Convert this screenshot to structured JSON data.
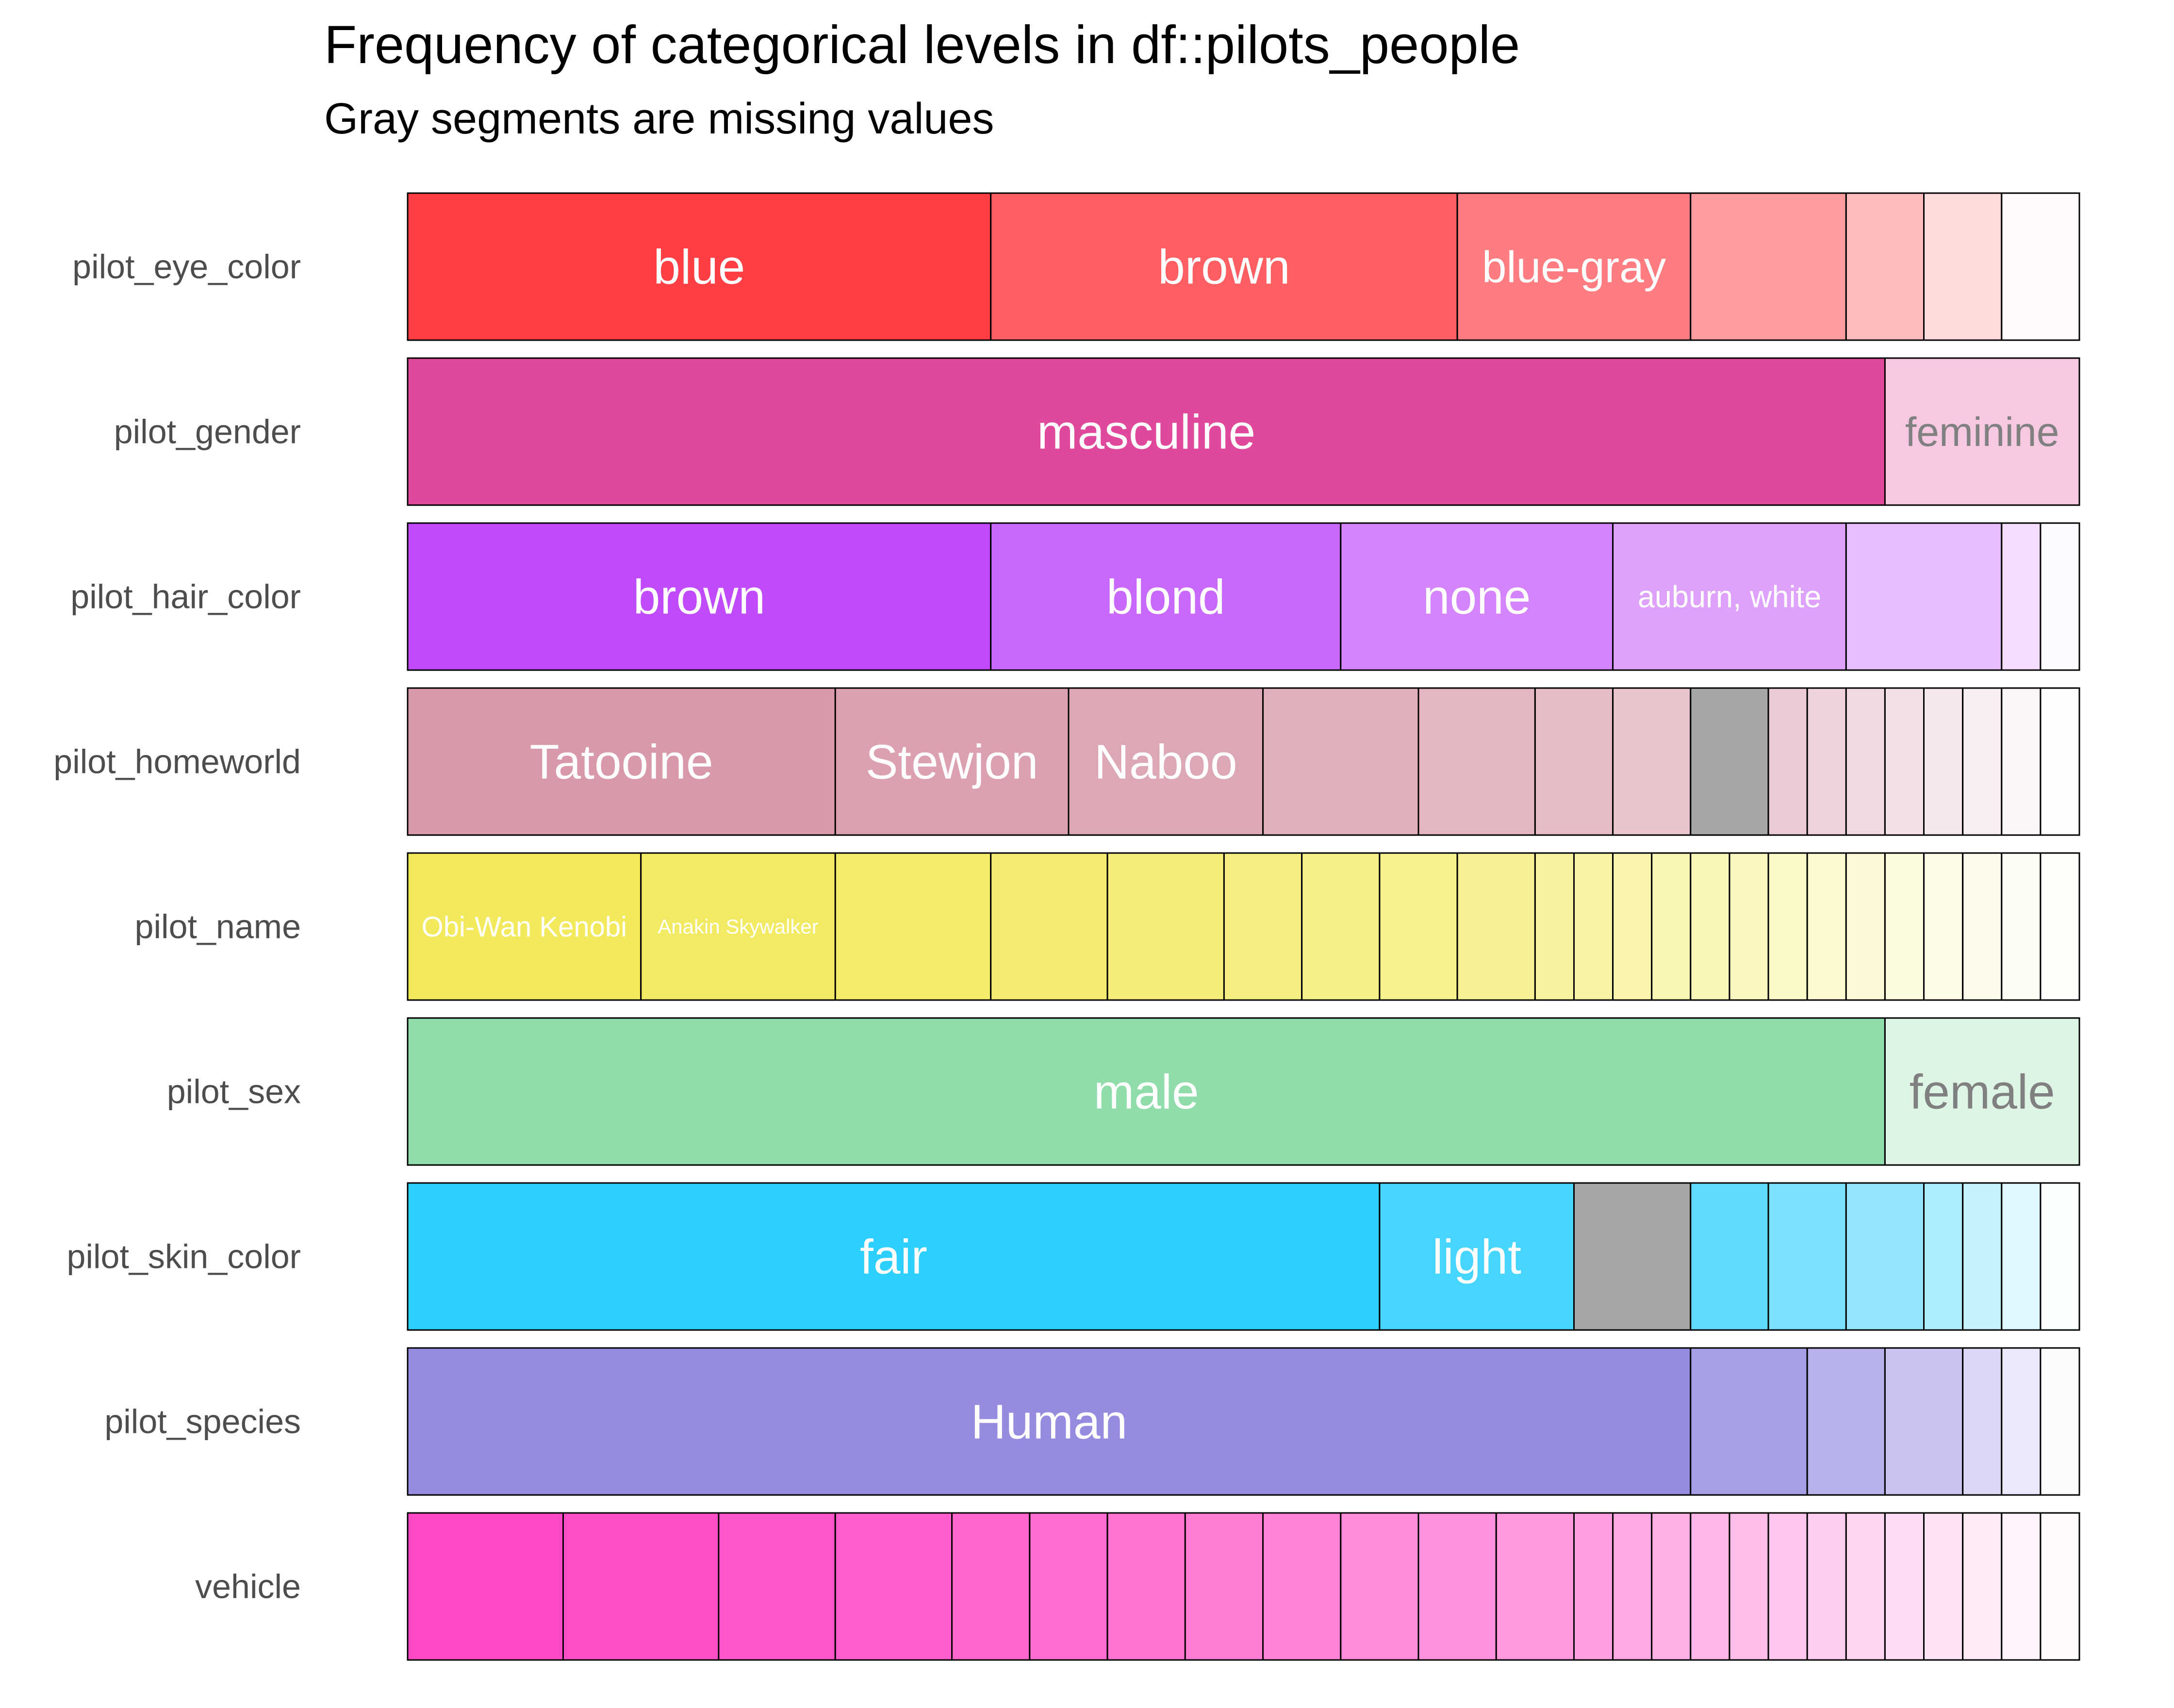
{
  "chart_data": {
    "type": "bar",
    "orientation": "horizontal-stacked-proportion",
    "title": "Frequency of categorical levels in df::pilots_people",
    "subtitle": "Gray segments are missing values",
    "missing_color": "#a6a6a6",
    "xlim": [
      0,
      43
    ],
    "rows": [
      {
        "name": "pilot_eye_color",
        "color": "#ff3f44",
        "segments": [
          {
            "label": "blue",
            "value": 15
          },
          {
            "label": "brown",
            "value": 12
          },
          {
            "label": "blue-gray",
            "value": 6
          },
          {
            "label": "",
            "value": 4
          },
          {
            "label": "",
            "value": 2
          },
          {
            "label": "",
            "value": 2
          },
          {
            "label": "",
            "value": 2
          }
        ]
      },
      {
        "name": "pilot_gender",
        "color": "#e0489b",
        "segments": [
          {
            "label": "masculine",
            "value": 38
          },
          {
            "label": "feminine",
            "value": 5
          }
        ]
      },
      {
        "name": "pilot_hair_color",
        "color": "#bf4bfc",
        "segments": [
          {
            "label": "brown",
            "value": 15
          },
          {
            "label": "blond",
            "value": 9
          },
          {
            "label": "none",
            "value": 7
          },
          {
            "label": "auburn, white",
            "value": 6
          },
          {
            "label": "",
            "value": 4
          },
          {
            "label": "",
            "value": 1
          },
          {
            "label": "",
            "value": 1
          }
        ]
      },
      {
        "name": "pilot_homeworld",
        "color": "#d89aaa",
        "segments": [
          {
            "label": "Tatooine",
            "value": 11
          },
          {
            "label": "Stewjon",
            "value": 6
          },
          {
            "label": "Naboo",
            "value": 5
          },
          {
            "label": "",
            "value": 4
          },
          {
            "label": "",
            "value": 3
          },
          {
            "label": "",
            "value": 2
          },
          {
            "label": "",
            "value": 2
          },
          {
            "label": "",
            "value": 2,
            "missing": true
          },
          {
            "label": "",
            "value": 1
          },
          {
            "label": "",
            "value": 1
          },
          {
            "label": "",
            "value": 1
          },
          {
            "label": "",
            "value": 1
          },
          {
            "label": "",
            "value": 1
          },
          {
            "label": "",
            "value": 1
          },
          {
            "label": "",
            "value": 1
          },
          {
            "label": "",
            "value": 1
          }
        ]
      },
      {
        "name": "pilot_name",
        "color": "#f2e95c",
        "segments": [
          {
            "label": "Obi-Wan Kenobi",
            "value": 6
          },
          {
            "label": "Anakin Skywalker",
            "value": 5
          },
          {
            "label": "",
            "value": 4
          },
          {
            "label": "",
            "value": 3
          },
          {
            "label": "",
            "value": 3
          },
          {
            "label": "",
            "value": 2
          },
          {
            "label": "",
            "value": 2
          },
          {
            "label": "",
            "value": 2
          },
          {
            "label": "",
            "value": 2
          },
          {
            "label": "",
            "value": 1
          },
          {
            "label": "",
            "value": 1
          },
          {
            "label": "",
            "value": 1
          },
          {
            "label": "",
            "value": 1
          },
          {
            "label": "",
            "value": 1
          },
          {
            "label": "",
            "value": 1
          },
          {
            "label": "",
            "value": 1
          },
          {
            "label": "",
            "value": 1
          },
          {
            "label": "",
            "value": 1
          },
          {
            "label": "",
            "value": 1
          },
          {
            "label": "",
            "value": 1
          },
          {
            "label": "",
            "value": 1
          },
          {
            "label": "",
            "value": 1
          },
          {
            "label": "",
            "value": 1
          }
        ]
      },
      {
        "name": "pilot_sex",
        "color": "#91dcab",
        "segments": [
          {
            "label": "male",
            "value": 38
          },
          {
            "label": "female",
            "value": 5
          }
        ]
      },
      {
        "name": "pilot_skin_color",
        "color": "#2dcffc",
        "segments": [
          {
            "label": "fair",
            "value": 25
          },
          {
            "label": "light",
            "value": 5
          },
          {
            "label": "",
            "value": 3,
            "missing": true
          },
          {
            "label": "",
            "value": 2
          },
          {
            "label": "",
            "value": 2
          },
          {
            "label": "",
            "value": 2
          },
          {
            "label": "",
            "value": 1
          },
          {
            "label": "",
            "value": 1
          },
          {
            "label": "",
            "value": 1
          },
          {
            "label": "",
            "value": 1
          }
        ]
      },
      {
        "name": "pilot_species",
        "color": "#958ce0",
        "segments": [
          {
            "label": "Human",
            "value": 33
          },
          {
            "label": "",
            "value": 3
          },
          {
            "label": "",
            "value": 2
          },
          {
            "label": "",
            "value": 2
          },
          {
            "label": "",
            "value": 1
          },
          {
            "label": "",
            "value": 1
          },
          {
            "label": "",
            "value": 1
          }
        ]
      },
      {
        "name": "vehicle",
        "color": "#ff48c4",
        "segments": [
          {
            "label": "",
            "value": 4
          },
          {
            "label": "",
            "value": 4
          },
          {
            "label": "",
            "value": 3
          },
          {
            "label": "",
            "value": 3
          },
          {
            "label": "",
            "value": 2
          },
          {
            "label": "",
            "value": 2
          },
          {
            "label": "",
            "value": 2
          },
          {
            "label": "",
            "value": 2
          },
          {
            "label": "",
            "value": 2
          },
          {
            "label": "",
            "value": 2
          },
          {
            "label": "",
            "value": 2
          },
          {
            "label": "",
            "value": 2
          },
          {
            "label": "",
            "value": 1
          },
          {
            "label": "",
            "value": 1
          },
          {
            "label": "",
            "value": 1
          },
          {
            "label": "",
            "value": 1
          },
          {
            "label": "",
            "value": 1
          },
          {
            "label": "",
            "value": 1
          },
          {
            "label": "",
            "value": 1
          },
          {
            "label": "",
            "value": 1
          },
          {
            "label": "",
            "value": 1
          },
          {
            "label": "",
            "value": 1
          },
          {
            "label": "",
            "value": 1
          },
          {
            "label": "",
            "value": 1
          },
          {
            "label": "",
            "value": 1
          }
        ]
      }
    ]
  }
}
